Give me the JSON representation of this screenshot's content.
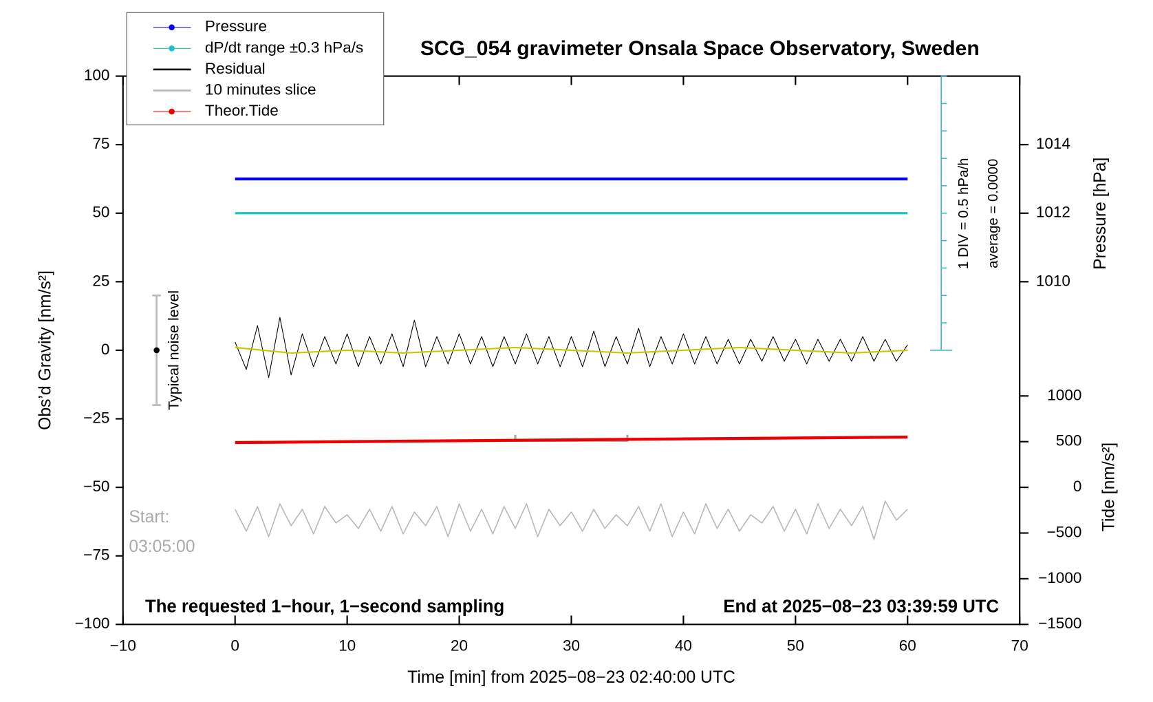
{
  "chart_data": {
    "type": "line",
    "title": "SCG_054 gravimeter Onsala Space Observatory, Sweden",
    "xlabel": "Time [min] from 2025−08−23 02:40:00 UTC",
    "ylabel": "Obs’d Gravity [nm/s²]",
    "y2label": "Pressure [hPa]",
    "y3label": "Tide [nm/s²]",
    "xlim": [
      -10,
      70
    ],
    "xticks": [
      {
        "value": -10,
        "label": "−10"
      },
      0,
      10,
      20,
      30,
      40,
      50,
      60,
      70
    ],
    "ylim": [
      -100,
      100
    ],
    "yticks": [
      {
        "value": -100,
        "label": "−100"
      },
      {
        "value": -75,
        "label": "−75"
      },
      {
        "value": -50,
        "label": "−50"
      },
      {
        "value": -25,
        "label": "−25"
      },
      0,
      25,
      50,
      75,
      100
    ],
    "y2lim": [
      1000,
      1016
    ],
    "y2ticks": [
      1010,
      1012,
      1014
    ],
    "y3lim": [
      -1500,
      4500
    ],
    "y3ticks": [
      {
        "value": -1500,
        "label": "−1500"
      },
      {
        "value": -1000,
        "label": "−1000"
      },
      {
        "value": -500,
        "label": "−500"
      },
      0,
      500,
      1000
    ],
    "series": [
      {
        "name": "Pressure",
        "color": "#0000ee",
        "marker": true,
        "axis": "y2",
        "x": [
          0,
          60
        ],
        "values": [
          1013,
          1013
        ]
      },
      {
        "name": "dP/dt range ±0.3 hPa/s",
        "color": "#20c0c0",
        "marker": true,
        "x": [
          0,
          60
        ],
        "values": [
          50,
          50
        ]
      },
      {
        "name": "Residual",
        "color": "#000000",
        "marker": false,
        "x": [
          0,
          1,
          2,
          3,
          4,
          5,
          6,
          7,
          8,
          9,
          10,
          11,
          12,
          13,
          14,
          15,
          16,
          17,
          18,
          19,
          20,
          21,
          22,
          23,
          24,
          25,
          26,
          27,
          28,
          29,
          30,
          31,
          32,
          33,
          34,
          35,
          36,
          37,
          38,
          39,
          40,
          41,
          42,
          43,
          44,
          45,
          46,
          47,
          48,
          49,
          50,
          51,
          52,
          53,
          54,
          55,
          56,
          57,
          58,
          59,
          60
        ],
        "values": [
          3,
          -7,
          9,
          -10,
          12,
          -9,
          6,
          -6,
          5,
          -5,
          6,
          -6,
          5,
          -5,
          6,
          -6,
          11,
          -6,
          5,
          -5,
          6,
          -5,
          5,
          -6,
          5,
          -5,
          6,
          -5,
          5,
          -6,
          5,
          -6,
          7,
          -6,
          5,
          -5,
          8,
          -6,
          5,
          -5,
          6,
          -5,
          5,
          -5,
          4,
          -5,
          4,
          -4,
          5,
          -4,
          4,
          -5,
          4,
          -4,
          4,
          -4,
          5,
          -4,
          4,
          -4,
          2
        ]
      },
      {
        "color": "#c8c800",
        "marker": false,
        "x": [
          0,
          5,
          10,
          15,
          20,
          25,
          30,
          35,
          40,
          45,
          50,
          55,
          60
        ],
        "values": [
          1,
          -1,
          0,
          -1,
          0,
          1,
          0,
          -1,
          0,
          1,
          0,
          -1,
          0
        ]
      },
      {
        "name": "10 minutes slice",
        "color": "#b8b8b8",
        "marker": false,
        "x": [
          0,
          1,
          2,
          3,
          4,
          5,
          6,
          7,
          8,
          9,
          10,
          11,
          12,
          13,
          14,
          15,
          16,
          17,
          18,
          19,
          20,
          21,
          22,
          23,
          24,
          25,
          26,
          27,
          28,
          29,
          30,
          31,
          32,
          33,
          34,
          35,
          36,
          37,
          38,
          39,
          40,
          41,
          42,
          43,
          44,
          45,
          46,
          47,
          48,
          49,
          50,
          51,
          52,
          53,
          54,
          55,
          56,
          57,
          58,
          59,
          60
        ],
        "values": [
          -58,
          -66,
          -57,
          -68,
          -56,
          -64,
          -58,
          -67,
          -57,
          -63,
          -60,
          -65,
          -58,
          -66,
          -57,
          -67,
          -59,
          -64,
          -57,
          -68,
          -56,
          -66,
          -58,
          -67,
          -57,
          -65,
          -56,
          -68,
          -58,
          -64,
          -59,
          -66,
          -58,
          -65,
          -60,
          -64,
          -57,
          -66,
          -56,
          -68,
          -59,
          -67,
          -56,
          -65,
          -58,
          -66,
          -60,
          -63,
          -57,
          -66,
          -58,
          -67,
          -56,
          -65,
          -58,
          -64,
          -57,
          -69,
          -55,
          -62,
          -58
        ]
      },
      {
        "name": "Theor.Tide",
        "color": "#ee0000",
        "marker": true,
        "axis": "y3",
        "x": [
          0,
          60
        ],
        "values": [
          490,
          550
        ]
      }
    ],
    "noise_bar": {
      "label": "Typical noise level",
      "x": -7,
      "low": -20,
      "high": 20,
      "center": 0
    },
    "slice_bracket": {
      "x": [
        25,
        35
      ],
      "y": -33
    },
    "dpdt_scale": {
      "x": 63,
      "range": [
        0,
        100
      ],
      "step": 10,
      "label": "1 DIV = 0.5 hPa/h",
      "average": "average = 0.0000"
    },
    "start_label": "Start:",
    "start_time": "03:05:00",
    "footer_left": "The requested 1−hour, 1−second sampling",
    "footer_right": "End at 2025−08−23 03:39:59 UTC"
  }
}
